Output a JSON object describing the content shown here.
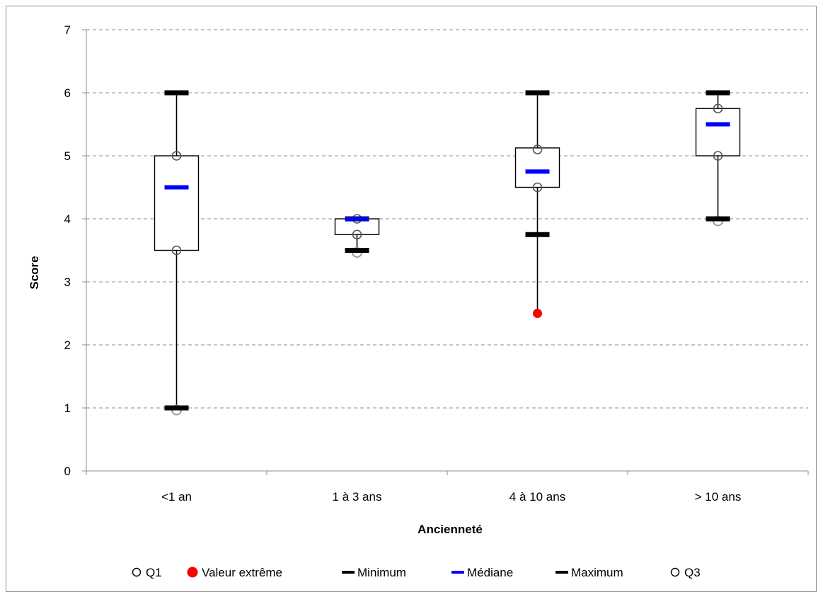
{
  "chart_data": {
    "type": "boxplot",
    "title": "",
    "xlabel": "Ancienneté",
    "ylabel": "Score",
    "ylim": [
      0,
      7
    ],
    "yticks": [
      "0",
      "1",
      "2",
      "3",
      "4",
      "5",
      "6",
      "7"
    ],
    "grid": "horizontal dashed",
    "legend_position": "bottom",
    "categories": [
      "<1 an",
      "1 à 3 ans",
      "4 à 10 ans",
      "> 10 ans"
    ],
    "series": [
      {
        "name": "Q1",
        "values": [
          3.5,
          3.75,
          4.5,
          5.0
        ]
      },
      {
        "name": "Valeur extrême",
        "values": [
          null,
          null,
          2.5,
          null
        ]
      },
      {
        "name": "Minimum",
        "values": [
          1.0,
          3.5,
          3.75,
          4.0
        ]
      },
      {
        "name": "Médiane",
        "values": [
          4.5,
          4.0,
          4.75,
          5.5
        ]
      },
      {
        "name": "Maximum",
        "values": [
          6.0,
          4.0,
          6.0,
          6.0
        ]
      },
      {
        "name": "Q3",
        "values": [
          5.0,
          4.0,
          5.1,
          5.75
        ]
      }
    ],
    "boxes": [
      {
        "q1": 3.5,
        "q3": 5.0,
        "whisker_low": 1.0,
        "whisker_high": 6.0,
        "low_circle": 1.0
      },
      {
        "q1": 3.75,
        "q3": 4.0,
        "whisker_low": 3.5,
        "whisker_high": 4.0,
        "low_circle": 3.5
      },
      {
        "q1": 4.5,
        "q3": 5.125,
        "whisker_low": 2.5,
        "whisker_high": 6.0,
        "low_circle": null
      },
      {
        "q1": 5.0,
        "q3": 5.75,
        "whisker_low": 4.0,
        "whisker_high": 6.0,
        "low_circle": 4.0
      }
    ],
    "colors": {
      "median": "#0000ff",
      "extreme": "#ff0000",
      "minmax": "#000000",
      "quartile_marker": "#555555",
      "grid": "#8c8c8c"
    }
  },
  "legend": {
    "items": [
      {
        "label": "Q1",
        "marker": "open-circle"
      },
      {
        "label": "Valeur extrême",
        "marker": "red-dot"
      },
      {
        "label": "Minimum",
        "marker": "black-dash"
      },
      {
        "label": "Médiane",
        "marker": "blue-dash"
      },
      {
        "label": "Maximum",
        "marker": "black-dash"
      },
      {
        "label": "Q3",
        "marker": "open-circle"
      }
    ]
  }
}
